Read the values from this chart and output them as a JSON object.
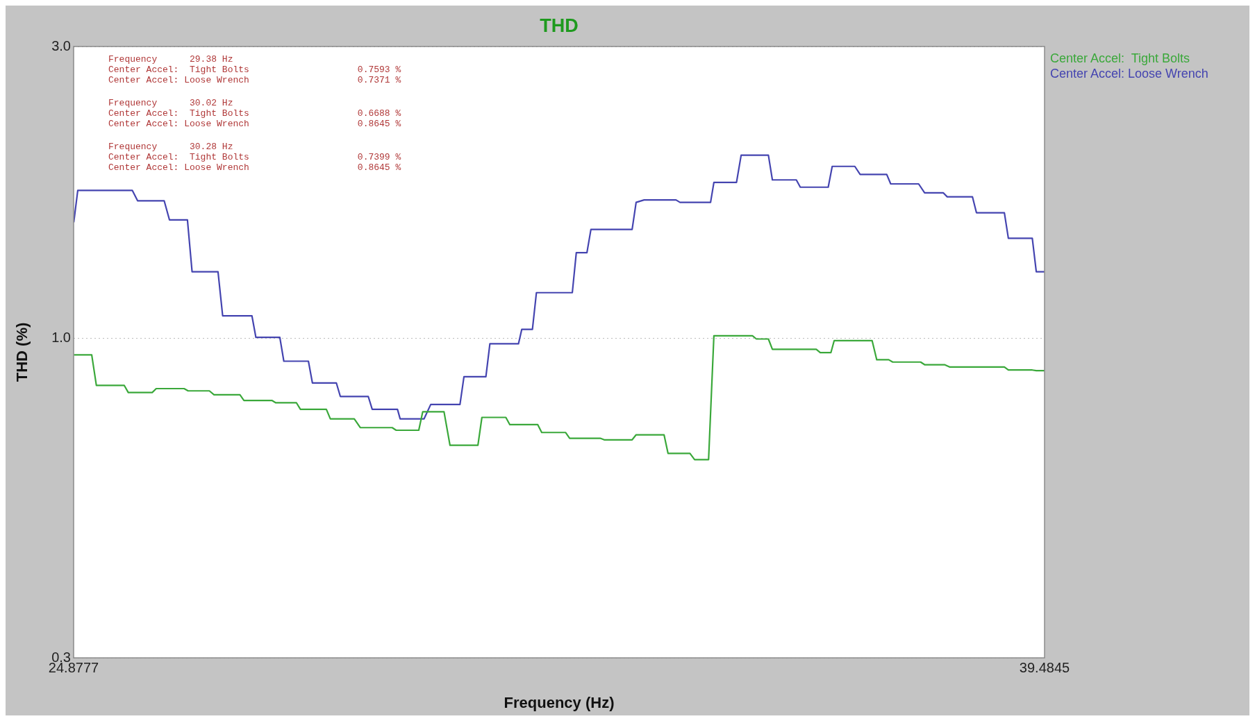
{
  "chart_data": {
    "type": "line",
    "title": "THD",
    "xlabel": "Frequency (Hz)",
    "ylabel": "THD (%)",
    "xlim": [
      24.8777,
      39.4845
    ],
    "xticks": [
      24.8777,
      39.4845
    ],
    "ylim": [
      0.3,
      3.0
    ],
    "yticks": [
      {
        "value": 0.3,
        "label": "0.3"
      },
      {
        "value": 1,
        "label": "1.0"
      },
      {
        "value": 3,
        "label": "3.0"
      }
    ],
    "log": "y",
    "grid": "y",
    "legend": "top right",
    "marker": "none",
    "line_style": "solid",
    "annotations": [
      "Frequency      29.38 Hz\nCenter Accel:  Tight Bolts                    0.7593 %\nCenter Accel: Loose Wrench                    0.7371 %",
      "Frequency      30.02 Hz\nCenter Accel:  Tight Bolts                    0.6688 %\nCenter Accel: Loose Wrench                    0.8645 %",
      "Frequency      30.28 Hz\nCenter Accel:  Tight Bolts                    0.7399 %\nCenter Accel: Loose Wrench                    0.8645 %"
    ],
    "series": [
      {
        "name": "Center Accel:  Tight Bolts",
        "color": "#3aa83a",
        "x": [
          24.88,
          25.15,
          25.22,
          25.64,
          25.7,
          26.06,
          26.12,
          26.54,
          26.6,
          26.92,
          26.99,
          27.38,
          27.44,
          27.86,
          27.92,
          28.23,
          28.29,
          28.68,
          28.74,
          29.1,
          29.19,
          29.67,
          29.73,
          30.07,
          30.13,
          30.45,
          30.54,
          30.96,
          31.02,
          31.38,
          31.44,
          31.86,
          31.92,
          32.28,
          32.34,
          32.8,
          32.86,
          33.28,
          33.34,
          33.76,
          33.82,
          34.15,
          34.22,
          34.43,
          34.51,
          35.09,
          35.15,
          35.33,
          35.39,
          36.05,
          36.11,
          36.27,
          36.32,
          36.89,
          36.96,
          37.14,
          37.2,
          37.62,
          37.68,
          37.98,
          38.06,
          38.88,
          38.94,
          39.3,
          39.36,
          39.4845
        ],
        "values": [
          0.939,
          0.939,
          0.837,
          0.837,
          0.815,
          0.815,
          0.827,
          0.827,
          0.82,
          0.82,
          0.808,
          0.808,
          0.791,
          0.791,
          0.784,
          0.784,
          0.765,
          0.765,
          0.738,
          0.738,
          0.714,
          0.714,
          0.707,
          0.707,
          0.758,
          0.758,
          0.668,
          0.668,
          0.742,
          0.742,
          0.722,
          0.722,
          0.701,
          0.701,
          0.686,
          0.686,
          0.682,
          0.682,
          0.695,
          0.695,
          0.648,
          0.648,
          0.633,
          0.633,
          1.009,
          1.009,
          0.997,
          0.997,
          0.959,
          0.959,
          0.947,
          0.947,
          0.991,
          0.991,
          0.922,
          0.922,
          0.914,
          0.914,
          0.905,
          0.905,
          0.897,
          0.897,
          0.887,
          0.887,
          0.885,
          0.885
        ]
      },
      {
        "name": "Center Accel: Loose Wrench",
        "color": "#4444b0",
        "x": [
          24.88,
          24.94,
          25.76,
          25.84,
          26.24,
          26.32,
          26.59,
          26.66,
          27.05,
          27.12,
          27.56,
          27.62,
          27.98,
          28.04,
          28.41,
          28.47,
          28.83,
          28.89,
          29.31,
          29.37,
          29.75,
          29.79,
          30.15,
          30.25,
          30.69,
          30.75,
          31.08,
          31.14,
          31.57,
          31.62,
          31.78,
          31.84,
          32.38,
          32.44,
          32.6,
          32.66,
          33.28,
          33.34,
          33.46,
          33.94,
          34.0,
          34.46,
          34.51,
          34.85,
          34.92,
          35.33,
          35.39,
          35.75,
          35.81,
          36.23,
          36.29,
          36.63,
          36.71,
          37.11,
          37.17,
          37.59,
          37.68,
          37.96,
          38.02,
          38.4,
          38.46,
          38.88,
          38.94,
          39.3,
          39.36,
          39.4845
        ],
        "values": [
          1.547,
          1.745,
          1.745,
          1.678,
          1.678,
          1.561,
          1.561,
          1.284,
          1.284,
          1.088,
          1.088,
          1.003,
          1.003,
          0.917,
          0.917,
          0.845,
          0.845,
          0.803,
          0.803,
          0.765,
          0.765,
          0.738,
          0.738,
          0.779,
          0.779,
          0.865,
          0.865,
          0.979,
          0.979,
          1.034,
          1.034,
          1.187,
          1.187,
          1.38,
          1.38,
          1.506,
          1.506,
          1.668,
          1.683,
          1.683,
          1.668,
          1.668,
          1.798,
          1.798,
          1.992,
          1.992,
          1.815,
          1.815,
          1.766,
          1.766,
          1.91,
          1.91,
          1.853,
          1.853,
          1.788,
          1.788,
          1.729,
          1.729,
          1.703,
          1.703,
          1.604,
          1.604,
          1.457,
          1.457,
          1.284,
          1.284
        ]
      }
    ]
  }
}
